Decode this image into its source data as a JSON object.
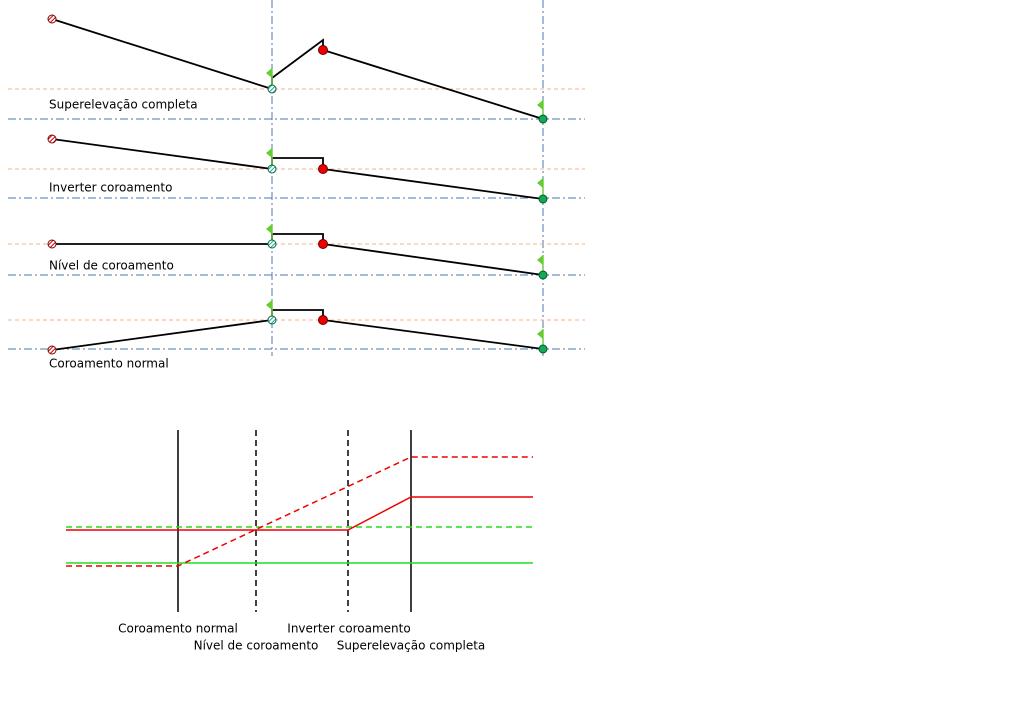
{
  "cross_sections": [
    {
      "label": "Superelevação completa"
    },
    {
      "label": "Inverter coroamento"
    },
    {
      "label": "Nível de coroamento"
    },
    {
      "label": "Coroamento normal"
    }
  ],
  "transition_labels": [
    "Coroamento normal",
    "Nível de coroamento",
    "Inverter coroamento",
    "Superelevação completa"
  ]
}
